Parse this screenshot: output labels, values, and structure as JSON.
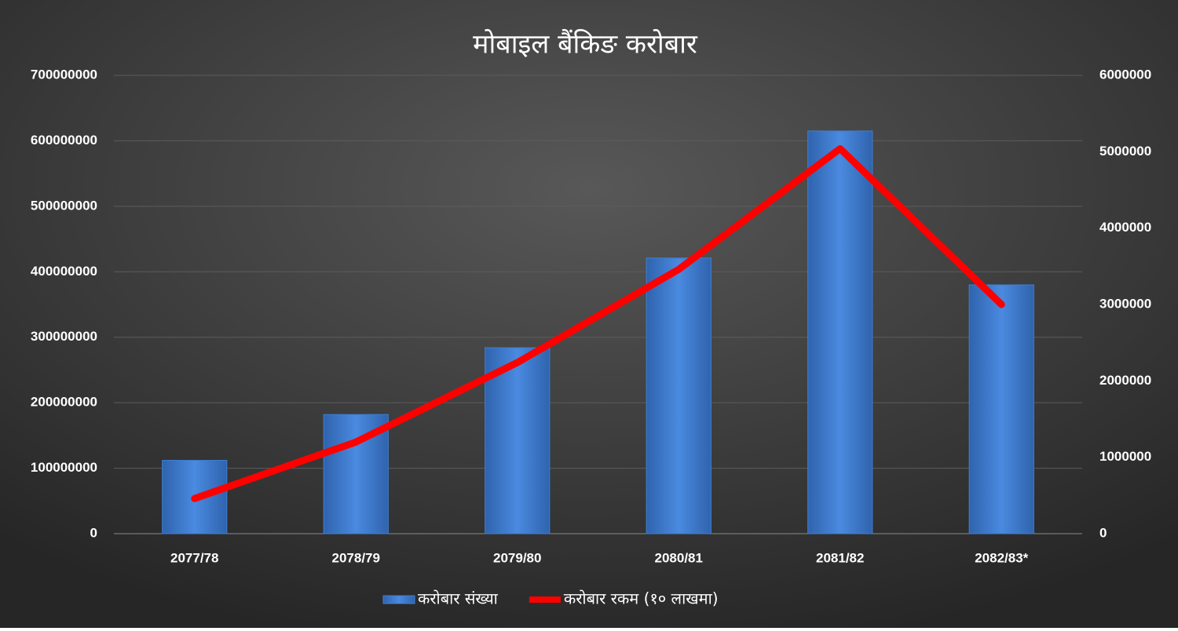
{
  "chart_data": {
    "type": "bar-line",
    "title": "मोबाइल बैंकिङ करोबार",
    "categories": [
      "2077/78",
      "2078/79",
      "2079/80",
      "2080/81",
      "2081/82",
      "2082/83*"
    ],
    "series": [
      {
        "name": "करोबार संख्या",
        "type": "bar",
        "color": "#3f7fd4",
        "axis": "y",
        "values": [
          112000000,
          182000000,
          284000000,
          421000000,
          615000000,
          380000000
        ]
      },
      {
        "name": "करोबार रकम (१० लाखमा)",
        "type": "line",
        "color": "#ff0000",
        "axis": "y2",
        "values": [
          460000,
          1200000,
          2240000,
          3460000,
          5040000,
          3000000
        ]
      }
    ],
    "ylim": [
      0,
      700000000
    ],
    "yticks": [
      0,
      100000000,
      200000000,
      300000000,
      400000000,
      500000000,
      600000000,
      700000000
    ],
    "y2lim": [
      0,
      6000000
    ],
    "y2ticks": [
      0,
      1000000,
      2000000,
      3000000,
      4000000,
      5000000,
      6000000
    ],
    "grid": true,
    "legend": "bottom"
  }
}
